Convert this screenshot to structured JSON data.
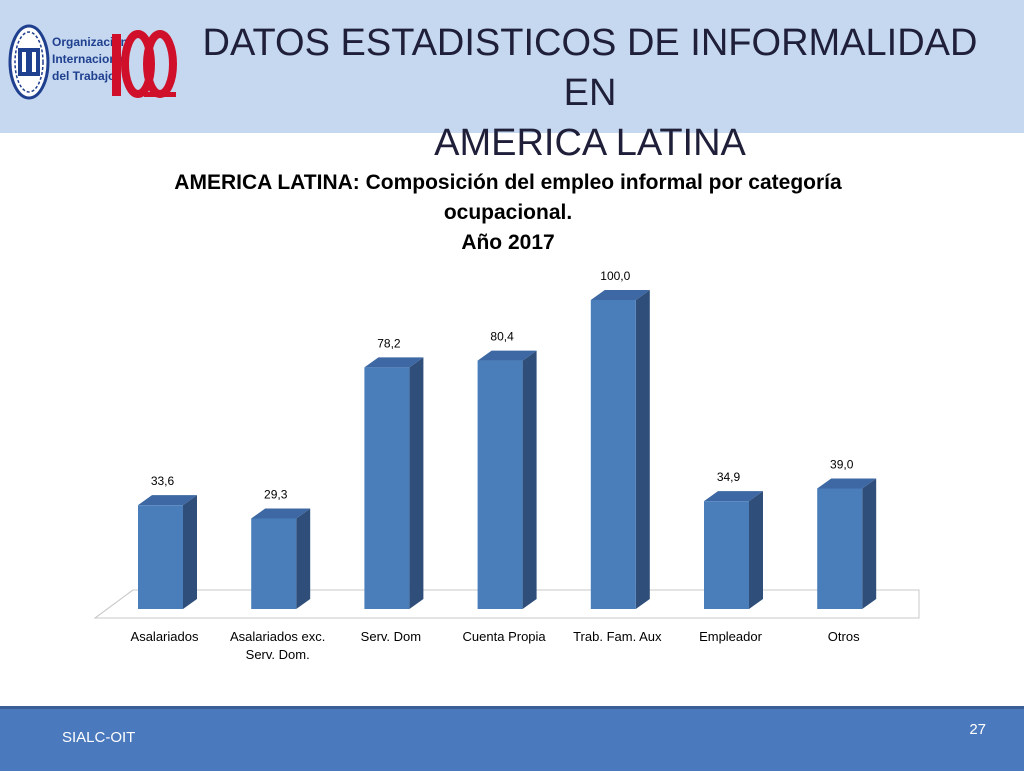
{
  "header": {
    "org_name_lines": [
      "Organización",
      "Internacional",
      "del Trabajo"
    ],
    "title_lines": [
      "DATOS ESTADISTICOS DE INFORMALIDAD EN",
      "AMERICA LATINA"
    ]
  },
  "colors": {
    "header_bg": "#c5d8ef",
    "bar_front": "#4a7ebb",
    "bar_side": "#2f4f7a",
    "footer_bg": "#4a79bd",
    "logo_red": "#d0102a",
    "logo_blue": "#1f3f8f"
  },
  "icons": {
    "oit_logo": "ilo-emblem-icon",
    "centenary_logo": "centenary-100-icon"
  },
  "chart_data": {
    "type": "bar",
    "title_lines": [
      "AMERICA LATINA: Composición del empleo informal por categoría",
      "ocupacional.",
      "Año 2017"
    ],
    "categories": [
      [
        "Asalariados"
      ],
      [
        "Asalariados exc.",
        "Serv. Dom."
      ],
      [
        "Serv. Dom"
      ],
      [
        "Cuenta Propia"
      ],
      [
        "Trab. Fam. Aux"
      ],
      [
        "Empleador"
      ],
      [
        "Otros"
      ]
    ],
    "values": [
      33.6,
      29.3,
      78.2,
      80.4,
      100.0,
      34.9,
      39.0
    ],
    "data_labels": [
      "33,6",
      "29,3",
      "78,2",
      "80,4",
      "100,0",
      "34,9",
      "39,0"
    ],
    "ylim": [
      0,
      100
    ],
    "grid": false,
    "legend": "none",
    "style": "3d-column"
  },
  "footer": {
    "source": "SIALC-OIT",
    "page_number": "27"
  }
}
